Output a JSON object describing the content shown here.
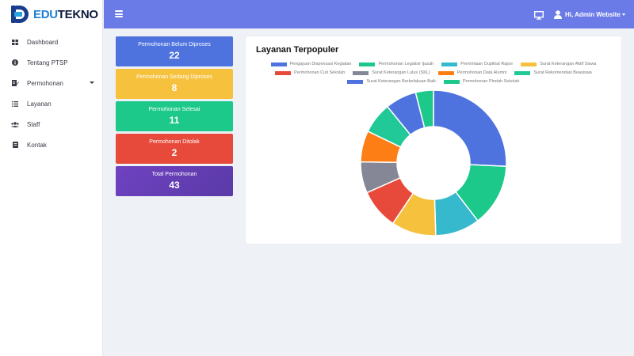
{
  "brand": {
    "part1": "EDU",
    "part2": "TEKNO"
  },
  "sidebar": {
    "items": [
      {
        "label": "Dashboard"
      },
      {
        "label": "Tentang PTSP"
      },
      {
        "label": "Permohonan"
      },
      {
        "label": "Layanan"
      },
      {
        "label": "Staff"
      },
      {
        "label": "Kontak"
      }
    ]
  },
  "topbar": {
    "greeting": "Hi, Admin Website"
  },
  "stats": [
    {
      "label": "Permohonan Belum Diproses",
      "value": "22",
      "color": "#4e73df"
    },
    {
      "label": "Permohonan Sedang Diproses",
      "value": "8",
      "color": "#f6c23e"
    },
    {
      "label": "Permohonan Selesai",
      "value": "11",
      "color": "#1cc88a"
    },
    {
      "label": "Permohonan Ditolak",
      "value": "2",
      "color": "#e74a3b"
    },
    {
      "label": "Total Permohonan",
      "value": "43",
      "color": "#6f42c1"
    }
  ],
  "chart_card": {
    "title": "Layanan Terpopuler"
  },
  "chart_data": {
    "type": "pie",
    "title": "Layanan Terpopuler",
    "legend_placement": "top",
    "categories": [
      "Pengajuan Dispensasi Kegiatan",
      "Permohonan Legalisir Ijazah",
      "Permintaan Duplikat Rapor",
      "Surat Keterangan Aktif Siswa",
      "Permohonan Cuti Sekolah",
      "Surat Keterangan Lulus (SKL)",
      "Permohonan Data Alumni",
      "Surat Rekomendasi Beasiswa",
      "Surat Keterangan Berkelakuan Baik",
      "Permohonan Pindah Sekolah"
    ],
    "values": [
      26,
      14,
      10,
      10,
      9,
      7,
      7,
      7,
      7,
      4
    ],
    "colors": [
      "#4e73df",
      "#1cc88a",
      "#36b9cc",
      "#f6c23e",
      "#e74a3b",
      "#858796",
      "#fd7e14",
      "#20c997",
      "#4e73df",
      "#1cc88a"
    ]
  }
}
